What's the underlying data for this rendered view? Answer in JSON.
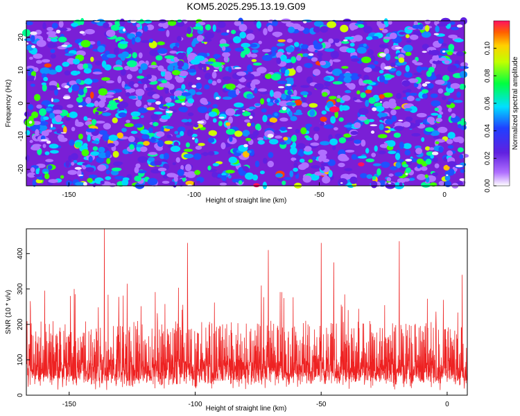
{
  "title": "KOM5.2025.295.13.19.G09",
  "chart_data": [
    {
      "type": "heatmap",
      "xlabel": "Height of straight line (km)",
      "ylabel": "Frequency (Hz)",
      "xlim": [
        -167,
        8
      ],
      "ylim": [
        -25,
        25
      ],
      "xticks": [
        -150,
        -100,
        -50,
        0
      ],
      "xtick_labels": [
        "-150",
        "-100",
        "-50",
        "0"
      ],
      "yticks": [
        -20,
        -10,
        0,
        10,
        20
      ],
      "ytick_labels": [
        "-20",
        "-10",
        "0",
        "10",
        "20"
      ],
      "colorbar": {
        "label": "Normalized spectral amplitude",
        "range": [
          0.0,
          0.12
        ],
        "ticks": [
          0.0,
          0.02,
          0.04,
          0.06,
          0.08,
          0.1
        ],
        "tick_labels": [
          "0.00",
          "0.02",
          "0.04",
          "0.06",
          "0.08",
          "0.10"
        ],
        "colormap": [
          "#ffffff",
          "#8a2be2",
          "#2040ff",
          "#00ffff",
          "#00ff00",
          "#ffff00",
          "#ff8000",
          "#ff0050"
        ]
      }
    },
    {
      "type": "line",
      "xlabel": "Height of straight line (km)",
      "ylabel": "SNR (10 * v/v)",
      "xlim": [
        -167,
        8
      ],
      "ylim": [
        0,
        470
      ],
      "xticks": [
        -150,
        -100,
        -50,
        0
      ],
      "xtick_labels": [
        "-150",
        "-100",
        "-50",
        "0"
      ],
      "yticks": [
        0,
        100,
        200,
        300,
        400
      ],
      "ytick_labels": [
        "0",
        "100",
        "200",
        "300",
        "400"
      ],
      "color": "#ee2222",
      "peaks": [
        {
          "x": -136,
          "y": 470
        },
        {
          "x": -103,
          "y": 430
        },
        {
          "x": -71,
          "y": 410
        },
        {
          "x": -50,
          "y": 430
        },
        {
          "x": -19,
          "y": 435
        },
        {
          "x": -45,
          "y": 375
        },
        {
          "x": -148,
          "y": 300
        },
        {
          "x": 6,
          "y": 340
        }
      ]
    }
  ]
}
